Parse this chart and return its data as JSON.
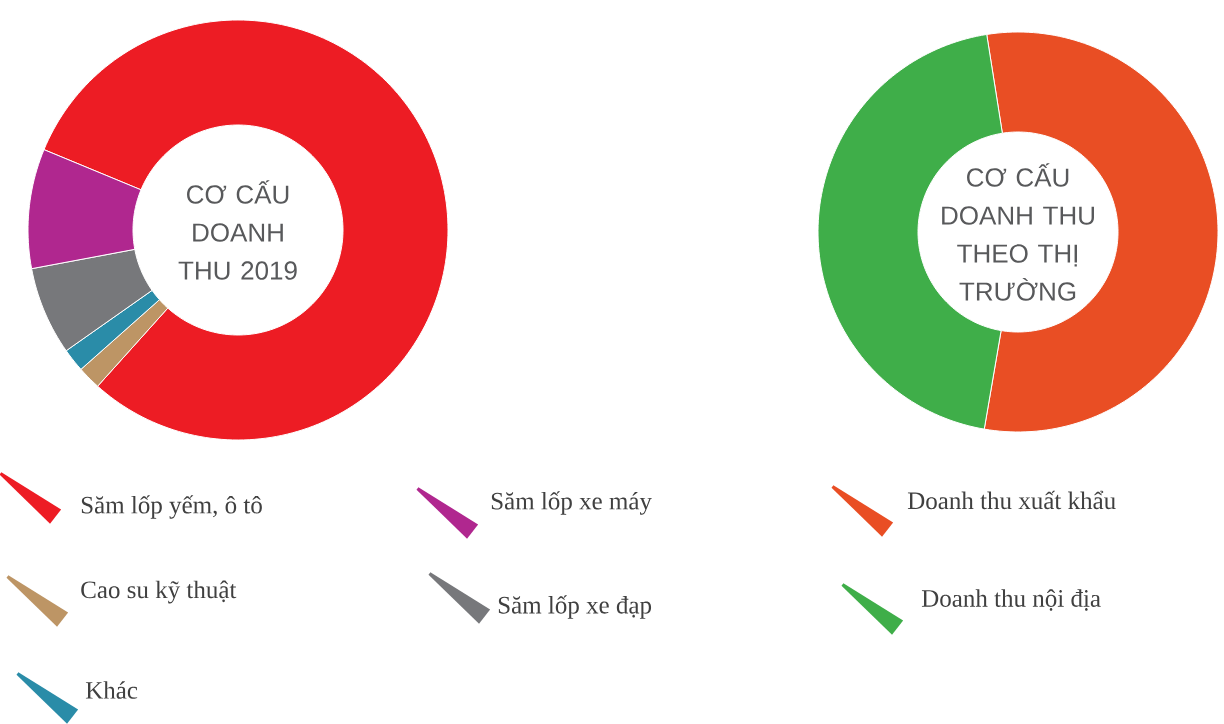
{
  "chart_data": [
    {
      "type": "donut",
      "title": "CƠ CẤU DOANH THU 2019",
      "legend": "bottom",
      "categories": [
        "Săm lốp yếm, ô tô",
        "Cao su kỹ thuật",
        "Khác",
        "Săm lốp xe đạp",
        "Săm lốp xe máy"
      ],
      "values": [
        80.4,
        1.8,
        1.8,
        6.8,
        9.2
      ],
      "colors": [
        "#ed1c24",
        "#bd9565",
        "#2a8ca8",
        "#77787b",
        "#b0278f"
      ]
    },
    {
      "type": "donut",
      "title": "CƠ CẤU DOANH THU THEO THỊ TRƯỜNG",
      "legend": "bottom",
      "categories": [
        "Doanh thu xuất khẩu",
        "Doanh thu nội địa"
      ],
      "values": [
        55.2,
        44.8
      ],
      "colors": [
        "#e94e24",
        "#3fae49"
      ]
    }
  ]
}
